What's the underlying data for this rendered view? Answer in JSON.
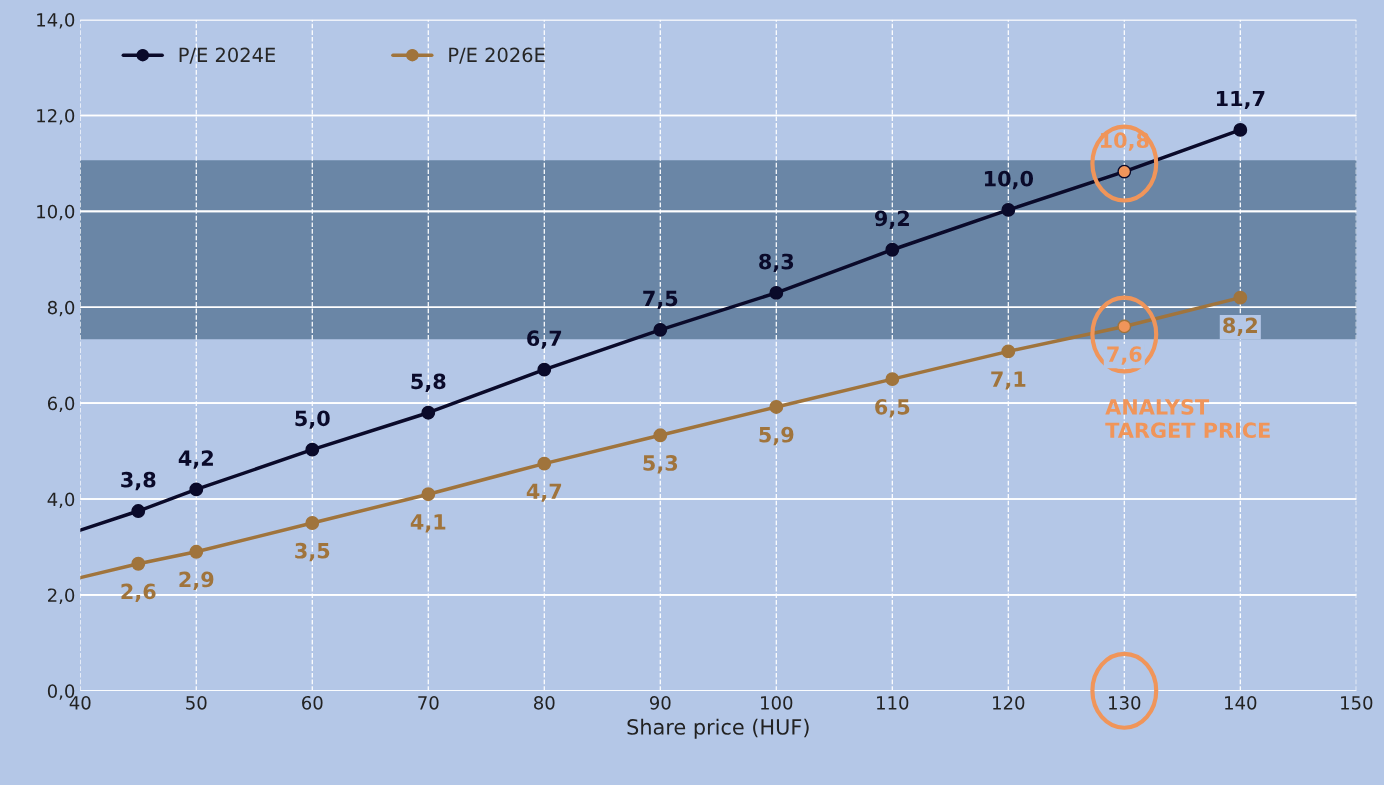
{
  "chart_data": {
    "type": "line",
    "xlabel": "Share price (HUF)",
    "xlim": [
      40,
      150
    ],
    "xticks": [
      40,
      50,
      60,
      70,
      80,
      90,
      100,
      110,
      120,
      130,
      140,
      150
    ],
    "ylim": [
      0,
      14
    ],
    "yticks": [
      {
        "value": 0,
        "label": "0,0"
      },
      {
        "value": 2,
        "label": "2,0"
      },
      {
        "value": 4,
        "label": "4,0"
      },
      {
        "value": 6,
        "label": "6,0"
      },
      {
        "value": 8,
        "label": "8,0"
      },
      {
        "value": 10,
        "label": "10,0"
      },
      {
        "value": 12,
        "label": "12,0"
      },
      {
        "value": 14,
        "label": "14,0"
      }
    ],
    "grid": true,
    "legend": "top left",
    "marker": "circle",
    "line_style": "solid",
    "bands": [
      {
        "axis": "y",
        "from": 7.35,
        "to": 11.05,
        "color": "#6a86a6"
      }
    ],
    "series": [
      {
        "name": "P/E 2024E",
        "color": "#0a0a2a",
        "x": [
          45,
          50,
          60,
          70,
          80,
          90,
          100,
          110,
          120,
          130,
          140
        ],
        "values": [
          3.75,
          4.2,
          5.03,
          5.8,
          6.7,
          7.53,
          8.3,
          9.2,
          10.03,
          10.83,
          11.7
        ],
        "colors": [
          "#0a0a2a",
          "#0a0a2a",
          "#0a0a2a",
          "#0a0a2a",
          "#0a0a2a",
          "#0a0a2a",
          "#0a0a2a",
          "#0a0a2a",
          "#0a0a2a",
          "#f0955a",
          "#0a0a2a"
        ],
        "value_labels": [
          "3,8",
          "4,2",
          "5,0",
          "5,8",
          "6,7",
          "7,5",
          "8,3",
          "9,2",
          "10,0",
          "10,8",
          "11,7"
        ]
      },
      {
        "name": "P/E 2026E",
        "color": "#a0743c",
        "x": [
          45,
          50,
          60,
          70,
          80,
          90,
          100,
          110,
          120,
          130,
          140
        ],
        "values": [
          2.65,
          2.9,
          3.5,
          4.1,
          4.74,
          5.33,
          5.92,
          6.5,
          7.08,
          7.6,
          8.2
        ],
        "colors": [
          "#a0743c",
          "#a0743c",
          "#a0743c",
          "#a0743c",
          "#a0743c",
          "#a0743c",
          "#a0743c",
          "#a0743c",
          "#a0743c",
          "#f0955a",
          "#a0743c"
        ],
        "value_labels": [
          "2,6",
          "2,9",
          "3,5",
          "4,1",
          "4,7",
          "5,3",
          "5,9",
          "6,5",
          "7,1",
          "7,6",
          "8,2"
        ]
      },
      {
        "type": "line",
        "marker": "none",
        "color": "#0a0a2a",
        "x": [
          40,
          45
        ],
        "values": [
          3.35,
          3.75
        ]
      },
      {
        "type": "line",
        "marker": "none",
        "color": "#a0743c",
        "x": [
          40,
          45
        ],
        "values": [
          2.36,
          2.65
        ]
      }
    ],
    "annotations": [
      "ANALYST\nTARGET PRICE"
    ]
  }
}
